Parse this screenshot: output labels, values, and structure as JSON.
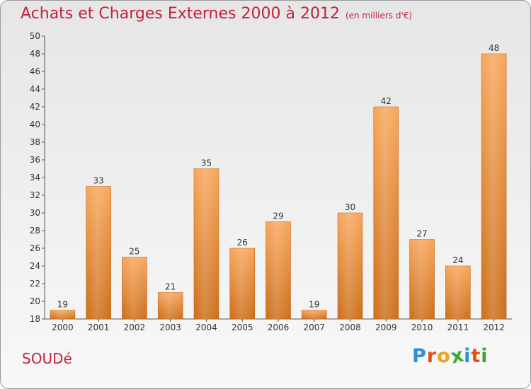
{
  "header": {
    "title": "Achats et Charges Externes 2000 à 2012",
    "subtitle": "(en milliers d'€)"
  },
  "footer": {
    "commune": "SOUDé",
    "logo_letters": [
      "P",
      "r",
      "o",
      "x",
      "i",
      "t",
      "i"
    ]
  },
  "colors": {
    "title": "#c4213d",
    "bar_light": "#f7a65a",
    "bar_dark": "#cc6e1a",
    "logo": [
      "#2f8fd8",
      "#e84d1c",
      "#f0a020",
      "#39a935",
      "#2f8fd8",
      "#e84d1c",
      "#39a935"
    ]
  },
  "chart_data": {
    "type": "bar",
    "categories": [
      "2000",
      "2001",
      "2002",
      "2003",
      "2004",
      "2005",
      "2006",
      "2007",
      "2008",
      "2009",
      "2010",
      "2011",
      "2012"
    ],
    "values": [
      19,
      33,
      25,
      21,
      35,
      26,
      29,
      19,
      30,
      42,
      27,
      24,
      48
    ],
    "ylim": [
      18,
      50
    ],
    "yticks": [
      18,
      20,
      22,
      24,
      26,
      28,
      30,
      32,
      34,
      36,
      38,
      40,
      42,
      44,
      46,
      48,
      50
    ],
    "grid": false,
    "legend": "none"
  }
}
